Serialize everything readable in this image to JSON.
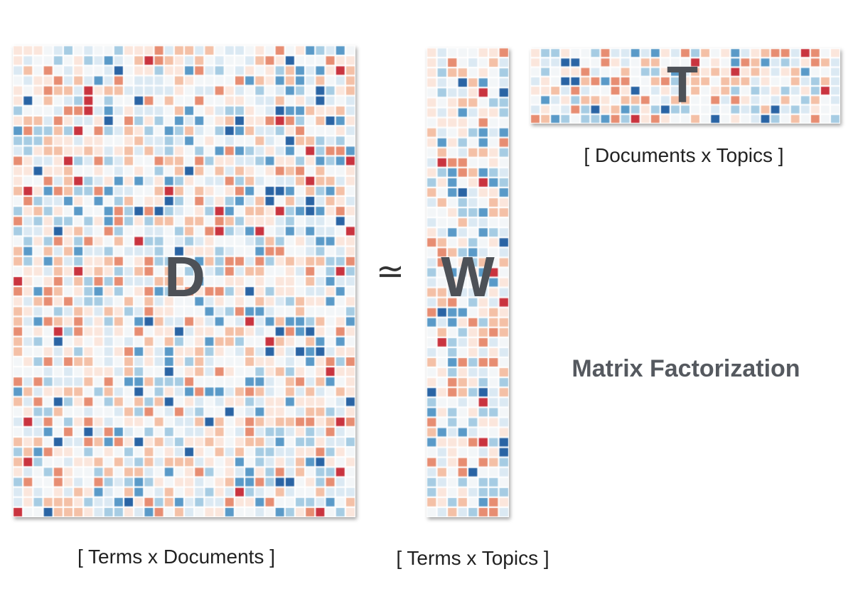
{
  "matrices": {
    "d": {
      "letter": "D",
      "caption": "[ Terms x Documents ]"
    },
    "w": {
      "letter": "W",
      "caption": "[ Terms x Topics ]"
    },
    "t": {
      "letter": "T",
      "caption": "[ Documents x Topics ]"
    }
  },
  "operator": "≃",
  "title": "Matrix Factorization",
  "palette": [
    "#f3f6f8",
    "#fbe6dc",
    "#f4c0a6",
    "#e78d72",
    "#c9343f",
    "#dbe9f3",
    "#a6cce3",
    "#5a9ac8",
    "#2a64a4"
  ]
}
